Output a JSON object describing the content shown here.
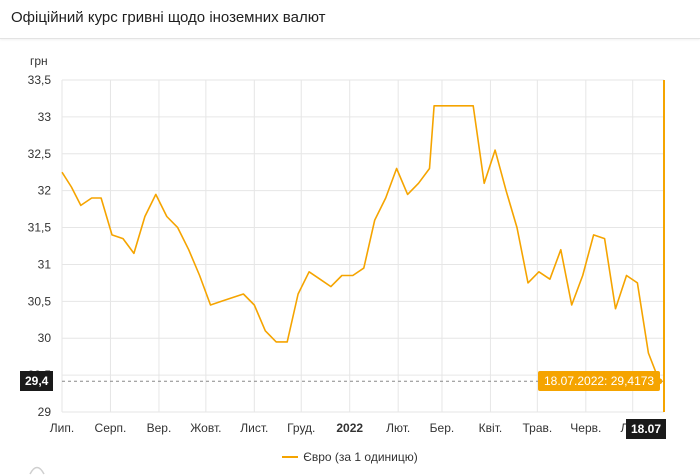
{
  "header": {
    "title": "Офіційний курс гривні щодо іноземних валют"
  },
  "colors": {
    "series": "#f5a400",
    "grid": "#e6e6e6",
    "marker_bg": "#1a1a1a"
  },
  "chart_data": {
    "type": "line",
    "ylabel": "грн",
    "ylim": [
      29,
      33.5
    ],
    "y_ticks": [
      "29",
      "29,5",
      "30",
      "30,5",
      "31",
      "31,5",
      "32",
      "32,5",
      "33",
      "33,5"
    ],
    "x_ticks": [
      "Лип.",
      "Серп.",
      "Вер.",
      "Жовт.",
      "Лист.",
      "Груд.",
      "2022",
      "Лют.",
      "Бер.",
      "Квіт.",
      "Трав.",
      "Черв.",
      "Лип."
    ],
    "series": [
      {
        "name": "Євро (за 1 одиницю)",
        "x": [
          "2021-07-01",
          "2021-07-07",
          "2021-07-13",
          "2021-07-20",
          "2021-07-26",
          "2021-08-02",
          "2021-08-09",
          "2021-08-16",
          "2021-08-23",
          "2021-08-30",
          "2021-09-06",
          "2021-09-13",
          "2021-09-20",
          "2021-09-27",
          "2021-10-04",
          "2021-10-11",
          "2021-10-18",
          "2021-10-25",
          "2021-11-01",
          "2021-11-08",
          "2021-11-15",
          "2021-11-22",
          "2021-11-29",
          "2021-12-06",
          "2021-12-13",
          "2021-12-20",
          "2021-12-27",
          "2022-01-03",
          "2022-01-10",
          "2022-01-17",
          "2022-01-24",
          "2022-01-31",
          "2022-02-07",
          "2022-02-14",
          "2022-02-21",
          "2022-02-24",
          "2022-03-07",
          "2022-03-21",
          "2022-03-28",
          "2022-04-04",
          "2022-04-11",
          "2022-04-18",
          "2022-04-25",
          "2022-05-02",
          "2022-05-09",
          "2022-05-16",
          "2022-05-23",
          "2022-05-30",
          "2022-06-06",
          "2022-06-13",
          "2022-06-20",
          "2022-06-27",
          "2022-07-04",
          "2022-07-11",
          "2022-07-18"
        ],
        "y": [
          32.25,
          32.05,
          31.8,
          31.9,
          31.9,
          31.4,
          31.35,
          31.15,
          31.65,
          31.95,
          31.65,
          31.5,
          31.2,
          30.85,
          30.45,
          30.5,
          30.55,
          30.6,
          30.45,
          30.1,
          29.95,
          29.95,
          30.6,
          30.9,
          30.8,
          30.7,
          30.85,
          30.85,
          30.95,
          31.6,
          31.9,
          32.3,
          31.95,
          32.1,
          32.3,
          33.15,
          33.15,
          33.15,
          32.1,
          32.55,
          32.0,
          31.5,
          30.75,
          30.9,
          30.8,
          31.2,
          30.45,
          30.85,
          31.4,
          31.35,
          30.4,
          30.85,
          30.75,
          29.8,
          29.4173
        ]
      }
    ],
    "latest": {
      "date": "18.07.2022",
      "value_label": "18.07.2022: 29,4173"
    },
    "crosshair_y_label": "29,4",
    "crosshair_x_label": "18.07",
    "legend_position": "bottom",
    "grid": true
  }
}
